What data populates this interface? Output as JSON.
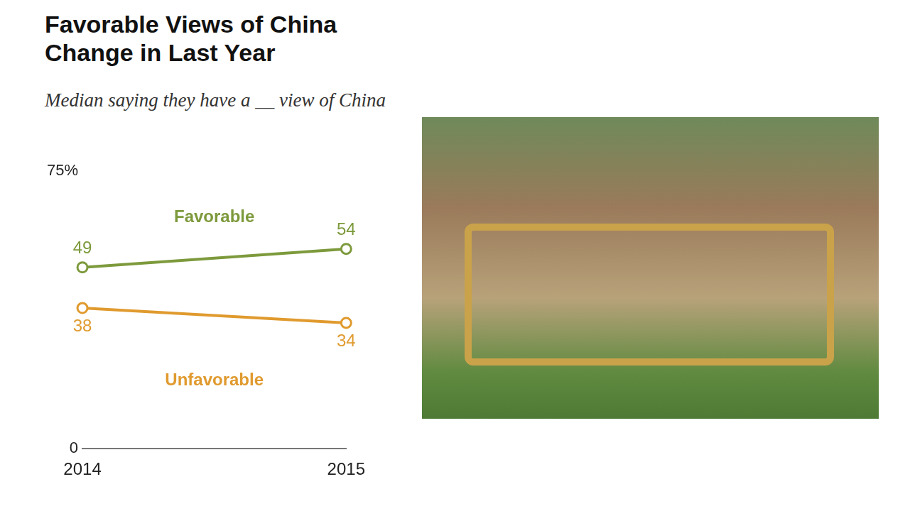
{
  "chart_data": {
    "type": "line",
    "title": "Favorable Views of China Change in Last Year",
    "subtitle": "Median saying they have a __ view of China",
    "categories": [
      "2014",
      "2015"
    ],
    "series": [
      {
        "name": "Favorable",
        "color": "#7d9a3c",
        "values": [
          49,
          54
        ]
      },
      {
        "name": "Unfavorable",
        "color": "#e09a2e",
        "values": [
          38,
          34
        ]
      }
    ],
    "ylim": [
      0,
      75
    ],
    "yticks": [
      0,
      {
        "value": 75,
        "label": "75%"
      }
    ],
    "grid": false,
    "data_labels": true,
    "marker": "circle"
  }
}
